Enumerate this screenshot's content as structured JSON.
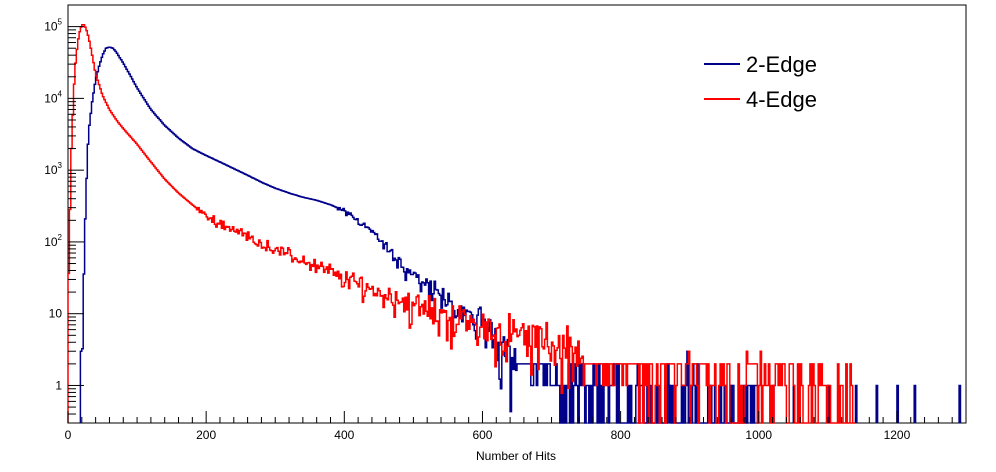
{
  "chart_data": {
    "type": "line",
    "title": "",
    "xlabel": "Number of Hits",
    "ylabel": "",
    "xlim": [
      0,
      1300
    ],
    "ylim": [
      0.3,
      200000
    ],
    "yscale": "log",
    "grid": false,
    "legend_position": "top-right",
    "x_ticks": [
      0,
      200,
      400,
      600,
      800,
      1000,
      1200
    ],
    "x_tick_labels": [
      "0",
      "200",
      "400",
      "600",
      "800",
      "1000",
      "1200"
    ],
    "y_ticks": [
      1,
      10,
      100,
      1000,
      10000,
      100000
    ],
    "y_tick_labels": [
      {
        "base": "1",
        "exp": ""
      },
      {
        "base": "10",
        "exp": ""
      },
      {
        "base": "10",
        "exp": "2"
      },
      {
        "base": "10",
        "exp": "3"
      },
      {
        "base": "10",
        "exp": "4"
      },
      {
        "base": "10",
        "exp": "5"
      }
    ],
    "series": [
      {
        "name": "2-Edge",
        "color": "#00008b",
        "points": [
          [
            18,
            0.3
          ],
          [
            20,
            1.0
          ],
          [
            22,
            10
          ],
          [
            25,
            200
          ],
          [
            28,
            1500
          ],
          [
            30,
            3500
          ],
          [
            35,
            9000
          ],
          [
            40,
            18000
          ],
          [
            45,
            28000
          ],
          [
            50,
            40000
          ],
          [
            55,
            50000
          ],
          [
            60,
            52000
          ],
          [
            65,
            50000
          ],
          [
            70,
            44000
          ],
          [
            80,
            31000
          ],
          [
            90,
            21000
          ],
          [
            100,
            14000
          ],
          [
            120,
            7000
          ],
          [
            140,
            4200
          ],
          [
            160,
            2800
          ],
          [
            180,
            2000
          ],
          [
            200,
            1600
          ],
          [
            220,
            1300
          ],
          [
            240,
            1050
          ],
          [
            260,
            850
          ],
          [
            280,
            680
          ],
          [
            300,
            560
          ],
          [
            320,
            480
          ],
          [
            340,
            420
          ],
          [
            360,
            380
          ],
          [
            380,
            330
          ],
          [
            400,
            270
          ],
          [
            420,
            200
          ],
          [
            440,
            140
          ],
          [
            460,
            85
          ],
          [
            480,
            50
          ],
          [
            500,
            35
          ],
          [
            520,
            24
          ],
          [
            540,
            16
          ],
          [
            560,
            12
          ],
          [
            580,
            9
          ],
          [
            600,
            7
          ],
          [
            620,
            5
          ],
          [
            640,
            3.5
          ],
          [
            660,
            2.5
          ],
          [
            680,
            1.8
          ],
          [
            700,
            1.4
          ],
          [
            720,
            1.1
          ],
          [
            740,
            0.9
          ],
          [
            760,
            0.75
          ],
          [
            800,
            0.6
          ],
          [
            850,
            0.5
          ],
          [
            900,
            0.45
          ],
          [
            950,
            0.4
          ],
          [
            1000,
            0.35
          ]
        ],
        "sparse_hits_x": [
          870,
          890,
          910,
          930,
          960,
          980,
          1020,
          1050,
          1100,
          1140,
          1170,
          1200,
          1225,
          1290
        ]
      },
      {
        "name": "4-Edge",
        "color": "#ff0000",
        "points": [
          [
            0,
            15
          ],
          [
            2,
            100
          ],
          [
            5,
            2000
          ],
          [
            8,
            10000
          ],
          [
            10,
            25000
          ],
          [
            14,
            60000
          ],
          [
            18,
            95000
          ],
          [
            22,
            110000
          ],
          [
            26,
            95000
          ],
          [
            30,
            70000
          ],
          [
            35,
            40000
          ],
          [
            40,
            22000
          ],
          [
            50,
            11000
          ],
          [
            60,
            7000
          ],
          [
            70,
            5000
          ],
          [
            80,
            3800
          ],
          [
            100,
            2300
          ],
          [
            120,
            1300
          ],
          [
            140,
            750
          ],
          [
            160,
            480
          ],
          [
            180,
            330
          ],
          [
            200,
            230
          ],
          [
            220,
            180
          ],
          [
            240,
            150
          ],
          [
            260,
            120
          ],
          [
            280,
            95
          ],
          [
            300,
            80
          ],
          [
            320,
            65
          ],
          [
            340,
            55
          ],
          [
            360,
            45
          ],
          [
            380,
            38
          ],
          [
            400,
            30
          ],
          [
            420,
            26
          ],
          [
            440,
            22
          ],
          [
            460,
            18
          ],
          [
            480,
            16
          ],
          [
            500,
            13
          ],
          [
            520,
            11
          ],
          [
            540,
            10
          ],
          [
            560,
            8.5
          ],
          [
            580,
            7.5
          ],
          [
            600,
            6.5
          ],
          [
            620,
            5.8
          ],
          [
            640,
            5.2
          ],
          [
            660,
            4.6
          ],
          [
            680,
            4.2
          ],
          [
            700,
            3.8
          ],
          [
            720,
            3.4
          ],
          [
            740,
            3.1
          ],
          [
            760,
            2.8
          ],
          [
            780,
            2.6
          ],
          [
            800,
            2.4
          ],
          [
            820,
            2.2
          ],
          [
            840,
            2.0
          ],
          [
            860,
            1.9
          ],
          [
            880,
            1.8
          ],
          [
            900,
            1.7
          ],
          [
            920,
            1.6
          ],
          [
            940,
            1.5
          ],
          [
            960,
            1.4
          ],
          [
            980,
            1.3
          ],
          [
            1000,
            1.2
          ],
          [
            1020,
            1.1
          ],
          [
            1040,
            1.0
          ],
          [
            1060,
            0.9
          ],
          [
            1080,
            0.8
          ],
          [
            1100,
            0.7
          ],
          [
            1120,
            0.45
          ],
          [
            1140,
            0.35
          ]
        ]
      }
    ]
  }
}
